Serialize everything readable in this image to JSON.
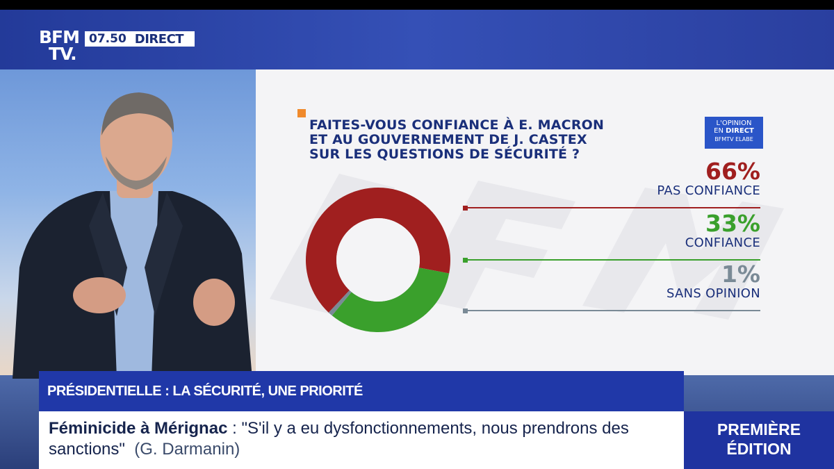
{
  "channel": {
    "logo_line1": "BFM",
    "logo_line2": "TV.",
    "time": "07.50",
    "live_label": "DIRECT"
  },
  "badge": {
    "line1": "L'OPINION",
    "line2_prefix": "EN",
    "line2_bold": "DIRECT",
    "line3": "BFMTV ELABE"
  },
  "question": {
    "line1": "FAITES-VOUS CONFIANCE À E. MACRON",
    "line2": "ET AU GOUVERNEMENT DE J. CASTEX",
    "line3": "SUR LES QUESTIONS DE SÉCURITÉ ?"
  },
  "chart_data": {
    "type": "pie",
    "subtype": "donut",
    "title": "FAITES-VOUS CONFIANCE À E. MACRON ET AU GOUVERNEMENT DE J. CASTEX SUR LES QUESTIONS DE SÉCURITÉ ?",
    "categories": [
      "PAS CONFIANCE",
      "CONFIANCE",
      "SANS OPINION"
    ],
    "values": [
      66,
      33,
      1
    ],
    "value_labels": [
      "66%",
      "33%",
      "1%"
    ],
    "colors": [
      "#a01f1f",
      "#3aa02c",
      "#7a8a96"
    ],
    "unit": "%"
  },
  "headline": "PRÉSIDENTIELLE : LA SÉCURITÉ, UNE PRIORITÉ",
  "ticker": {
    "topic": "Féminicide à Mérignac",
    "separator": " : ",
    "quote": "\"S'il y a eu dysfonctionnements, nous prendrons des sanctions\"",
    "source": "(G. Darmanin)"
  },
  "show": {
    "line1": "PREMIÈRE",
    "line2": "ÉDITION"
  }
}
